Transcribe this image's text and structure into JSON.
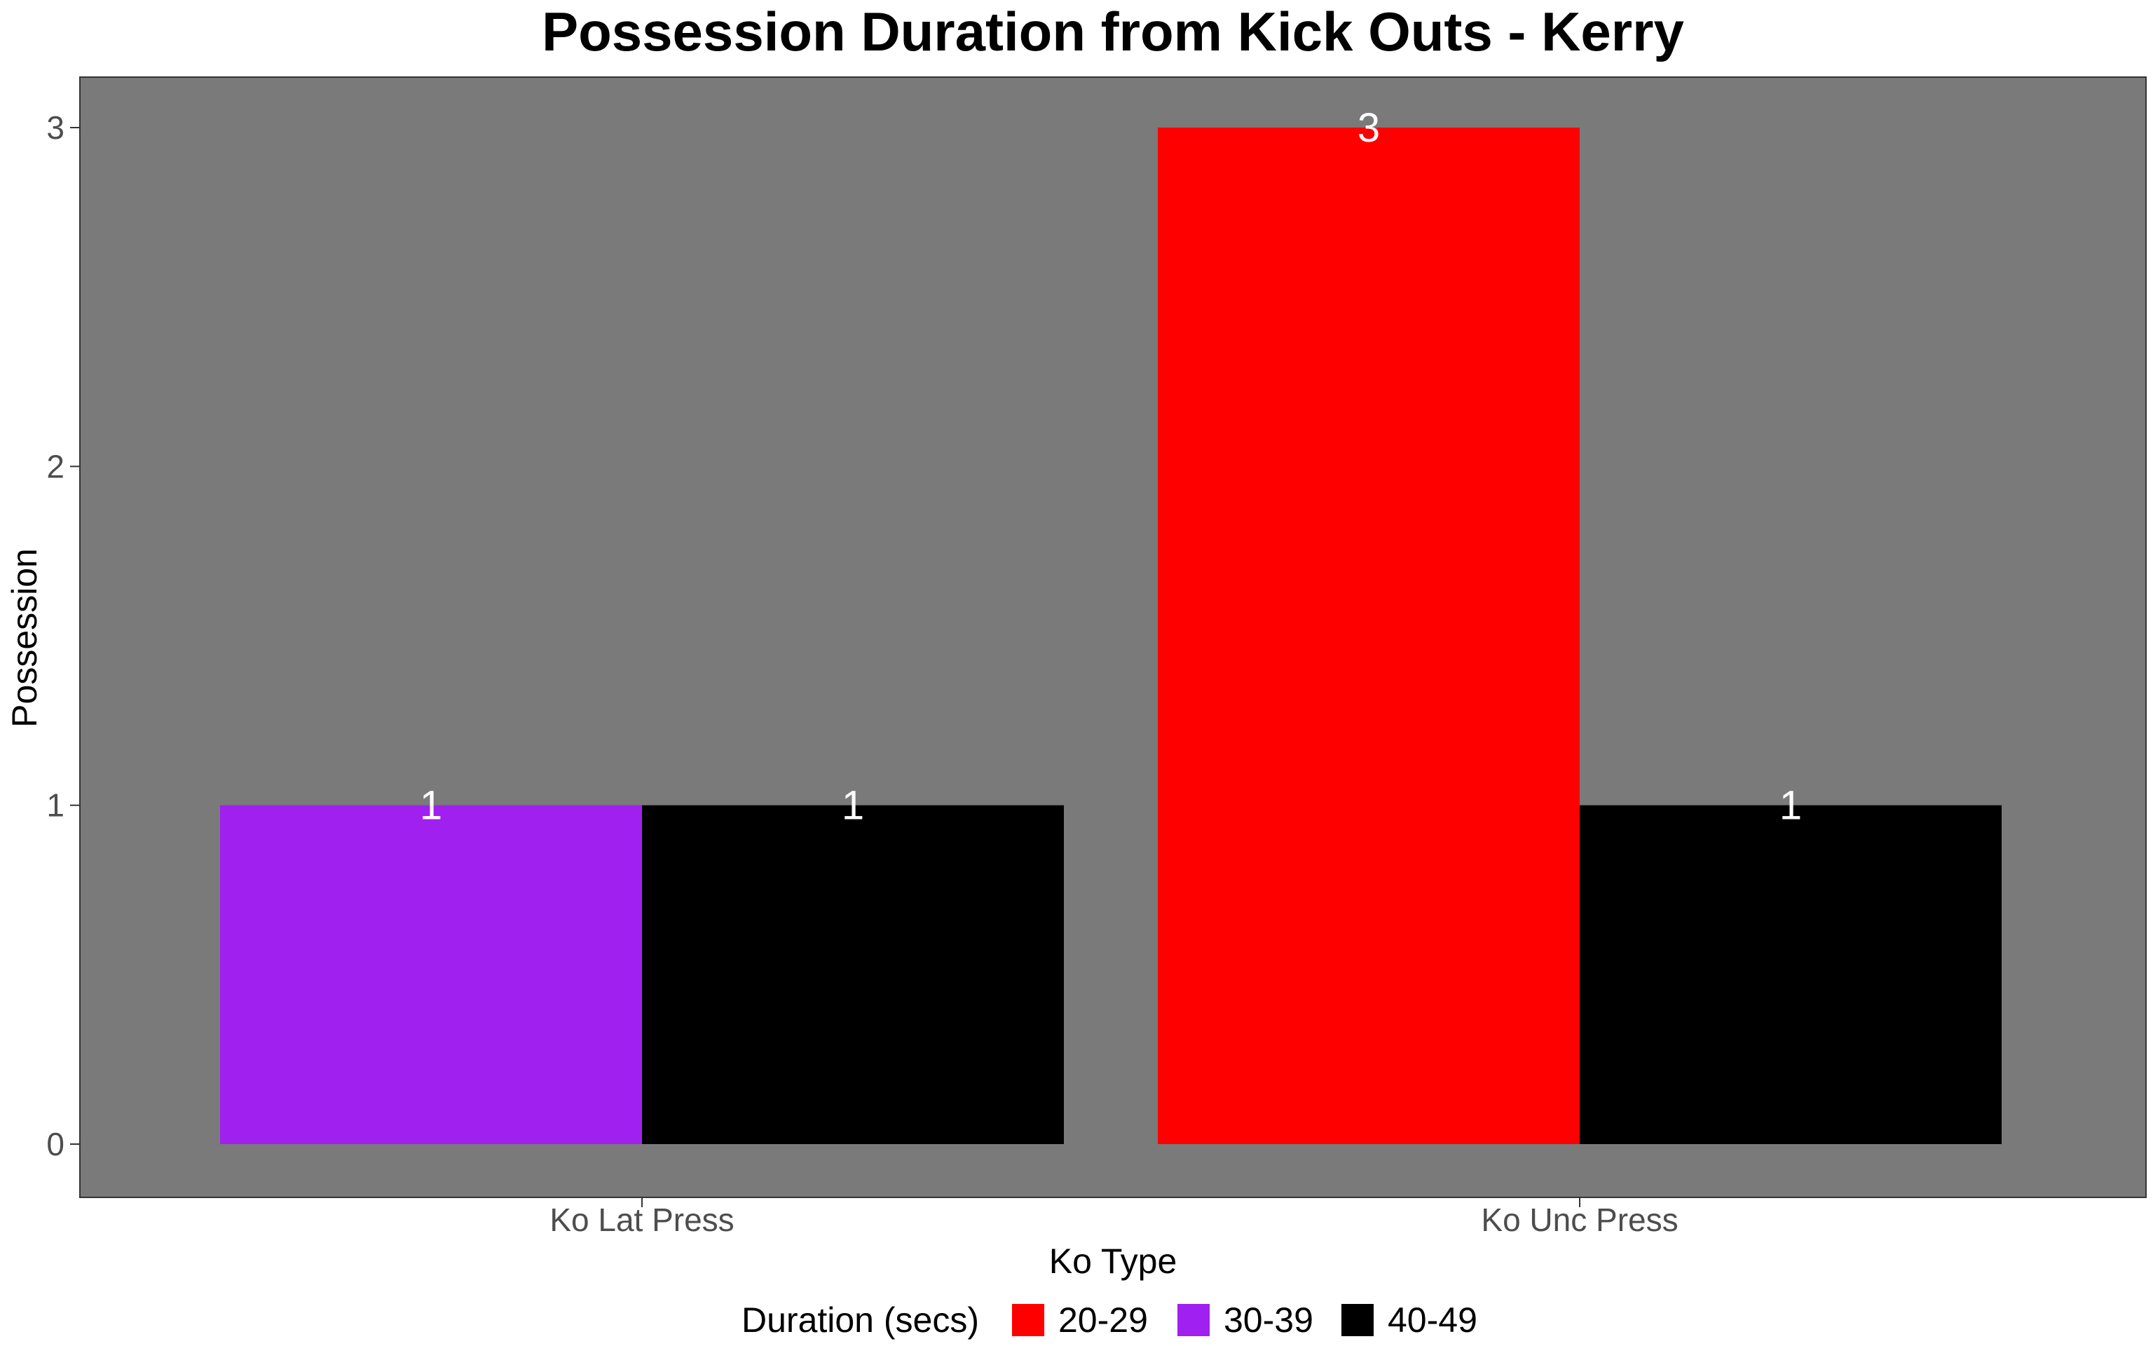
{
  "chart_data": {
    "type": "bar",
    "title": "Possession Duration from Kick Outs - Kerry",
    "xlabel": "Ko Type",
    "ylabel": "Possession",
    "categories": [
      "Ko Lat Press",
      "Ko Unc Press"
    ],
    "ylim": [
      0,
      3
    ],
    "yticks": [
      "0",
      "1",
      "2",
      "3"
    ],
    "legend": {
      "title": "Duration (secs)",
      "position": "bottom",
      "items": [
        {
          "label": "20-29",
          "color": "#ff0000"
        },
        {
          "label": "30-39",
          "color": "#a020f0"
        },
        {
          "label": "40-49",
          "color": "#000000"
        }
      ]
    },
    "panel_background": "#7a7a7a",
    "bars": [
      {
        "category": "Ko Lat Press",
        "group": "30-39",
        "value": 1,
        "label": "1",
        "color": "#a020f0"
      },
      {
        "category": "Ko Lat Press",
        "group": "40-49",
        "value": 1,
        "label": "1",
        "color": "#000000"
      },
      {
        "category": "Ko Unc Press",
        "group": "20-29",
        "value": 3,
        "label": "3",
        "color": "#ff0000"
      },
      {
        "category": "Ko Unc Press",
        "group": "40-49",
        "value": 1,
        "label": "1",
        "color": "#000000"
      }
    ]
  }
}
